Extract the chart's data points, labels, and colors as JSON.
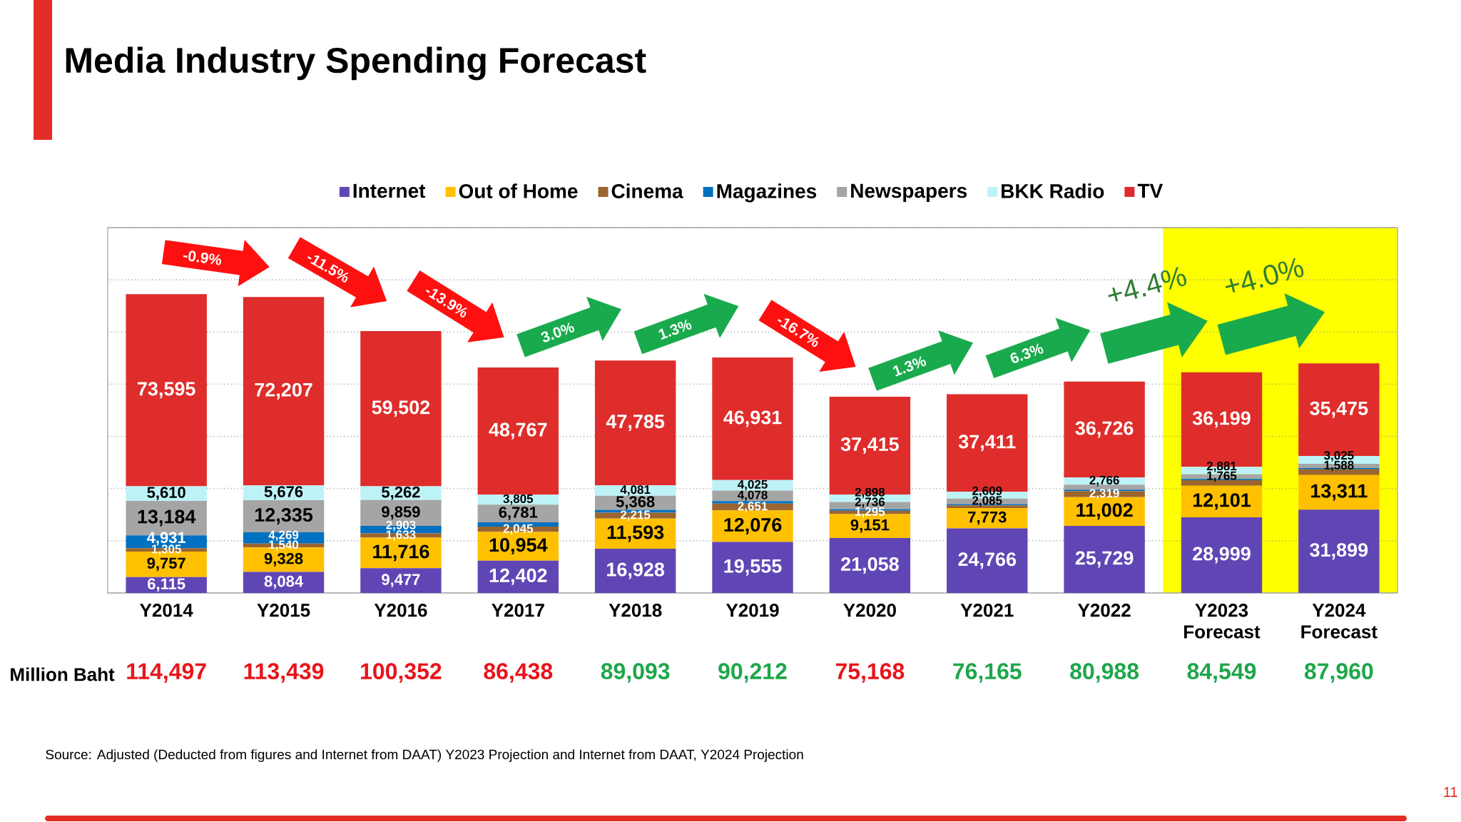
{
  "chart_data": {
    "type": "bar",
    "title": "Media Industry Spending Forecast",
    "categories": [
      "Y2014",
      "Y2015",
      "Y2016",
      "Y2017",
      "Y2018",
      "Y2019",
      "Y2020",
      "Y2021",
      "Y2022",
      "Y2023 Forecast",
      "Y2024 Forecast"
    ],
    "stacked": true,
    "series": [
      {
        "name": "Internet",
        "color": "#6046b4",
        "values": [
          6115,
          8084,
          9477,
          12402,
          16928,
          19555,
          21058,
          24766,
          25729,
          28999,
          31899
        ],
        "value_labels": [
          "6,115",
          "8,084",
          "9,477",
          "12,402",
          "16,928",
          "19,555",
          "21,058",
          "24,766",
          "25,729",
          "28,999",
          "31,899"
        ]
      },
      {
        "name": "Out of Home",
        "color": "#ffc000",
        "values": [
          9757,
          9328,
          11716,
          10954,
          11593,
          12076,
          9151,
          7773,
          11002,
          12101,
          13311
        ],
        "value_labels": [
          "9,757",
          "9,328",
          "11,716",
          "10,954",
          "11,593",
          "12,076",
          "9,151",
          "7,773",
          "11,002",
          "12,101",
          "13,311"
        ]
      },
      {
        "name": "Cinema",
        "color": "#9c652f",
        "values": [
          1305,
          1540,
          1633,
          2045,
          2215,
          2651,
          1295,
          1021,
          2319,
          2104,
          2162
        ],
        "value_labels": [
          "1,305",
          "1,540",
          "1,633",
          "2,045",
          "2,215",
          "2,651",
          "1,295",
          null,
          "2,319",
          null,
          null
        ]
      },
      {
        "name": "Magazines",
        "color": "#0070c0",
        "values": [
          4931,
          4269,
          2903,
          1684,
          1123,
          896,
          615,
          500,
          546,
          500,
          500
        ],
        "value_labels": [
          "4,931",
          "4,269",
          "2,903",
          null,
          null,
          null,
          null,
          null,
          null,
          null,
          null
        ]
      },
      {
        "name": "Newspapers",
        "color": "#a5a5a5",
        "values": [
          13184,
          12335,
          9859,
          6781,
          5368,
          4078,
          2736,
          2085,
          1900,
          1765,
          1588
        ],
        "value_labels": [
          "13,184",
          "12,335",
          "9,859",
          "6,781",
          "5,368",
          "4,078",
          "2,736",
          "2,085",
          null,
          "1,765",
          "1,588"
        ]
      },
      {
        "name": "BKK Radio",
        "color": "#bdf3f7",
        "values": [
          5610,
          5676,
          5262,
          3805,
          4081,
          4025,
          2898,
          2609,
          2766,
          2881,
          3025
        ],
        "value_labels": [
          "5,610",
          "5,676",
          "5,262",
          "3,805",
          "4,081",
          "4,025",
          "2,898",
          "2,609",
          "2,766",
          "2,881",
          "3,025"
        ]
      },
      {
        "name": "TV",
        "color": "#de2d2b",
        "values": [
          73595,
          72207,
          59502,
          48767,
          47785,
          46931,
          37415,
          37411,
          36726,
          36199,
          35475
        ],
        "value_labels": [
          "73,595",
          "72,207",
          "59,502",
          "48,767",
          "47,785",
          "46,931",
          "37,415",
          "37,411",
          "36,726",
          "36,199",
          "35,475"
        ]
      }
    ],
    "totals": [
      "114,497",
      "113,439",
      "100,352",
      "86,438",
      "89,093",
      "90,212",
      "75,168",
      "76,165",
      "80,988",
      "84,549",
      "87,960"
    ],
    "ylim": [
      0,
      140000
    ],
    "yticks": [
      {
        "value": 0,
        "label": null
      },
      {
        "value": 20000,
        "label": null
      },
      {
        "value": 40000,
        "label": null
      },
      {
        "value": 60000,
        "label": null
      },
      {
        "value": 80000,
        "label": null
      },
      {
        "value": 100000,
        "label": null
      },
      {
        "value": 120000,
        "label": null
      },
      {
        "value": 140000,
        "label": null
      }
    ],
    "tick_labels": "x",
    "grid": "y",
    "legend": "top",
    "bands": [
      {
        "axis": "x",
        "from": "Y2023 Forecast",
        "to": "Y2024 Forecast",
        "color": "#ffff00"
      }
    ],
    "annotations": [
      "-0.9%",
      "-11.5%",
      "-13.9%",
      "3.0%",
      "1.3%",
      "-16.7%",
      "1.3%",
      "6.3%",
      "+4.4%",
      "+4.0%",
      "Million Baht",
      "Source: Adjusted (Deducted from figures and Internet from DAAT) Y2023 Projection and Internet from DAAT, Y2024 Projection",
      "11"
    ]
  }
}
